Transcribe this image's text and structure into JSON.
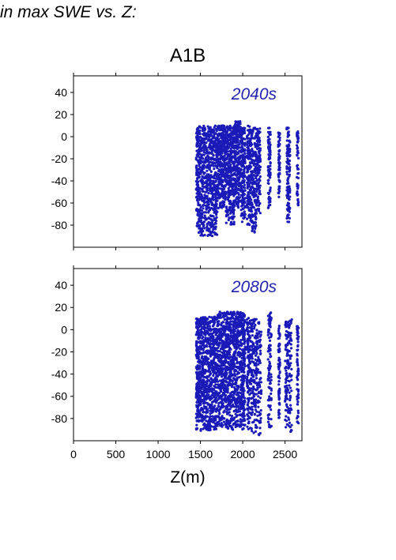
{
  "figure": {
    "title": "in max SWE vs. Z:",
    "scenario": "A1B",
    "x_label": "Z(m)"
  },
  "colors": {
    "points": "#1a1ab8",
    "panel_text": "#2323b0",
    "axis": "#000000"
  },
  "chart_data": [
    {
      "type": "scatter",
      "title": "2040s",
      "xlim": [
        0,
        2700
      ],
      "ylim": [
        -100,
        55
      ],
      "x_ticks": [
        0,
        500,
        1000,
        1500,
        2000,
        2500
      ],
      "y_ticks": [
        40,
        20,
        0,
        -20,
        -40,
        -60,
        -80
      ],
      "x_tick_labels_shown": false,
      "series": [
        {
          "color": "#1a1ab8",
          "clusters": [
            {
              "x_min": 1450,
              "x_max": 1480,
              "y_min": -82,
              "y_max": 8,
              "density": 20
            },
            {
              "x_min": 1480,
              "x_max": 1700,
              "y_min": -90,
              "y_max": 10,
              "density": 110
            },
            {
              "x_min": 1700,
              "x_max": 1800,
              "y_min": -65,
              "y_max": 10,
              "density": 55
            },
            {
              "x_min": 1800,
              "x_max": 1900,
              "y_min": -80,
              "y_max": 10,
              "density": 55
            },
            {
              "x_min": 1900,
              "x_max": 1980,
              "y_min": -65,
              "y_max": 14,
              "density": 40
            },
            {
              "x_min": 1980,
              "x_max": 2030,
              "y_min": -78,
              "y_max": 8,
              "density": 30
            },
            {
              "x_min": 2050,
              "x_max": 2100,
              "y_min": -80,
              "y_max": 10,
              "density": 25
            },
            {
              "x_min": 2100,
              "x_max": 2160,
              "y_min": -88,
              "y_max": 8,
              "density": 25
            },
            {
              "x_min": 2160,
              "x_max": 2210,
              "y_min": -70,
              "y_max": 8,
              "density": 22
            },
            {
              "x_min": 2300,
              "x_max": 2330,
              "y_min": -65,
              "y_max": 8,
              "density": 15
            },
            {
              "x_min": 2420,
              "x_max": 2440,
              "y_min": -55,
              "y_max": 5,
              "density": 10
            },
            {
              "x_min": 2520,
              "x_max": 2560,
              "y_min": -78,
              "y_max": 8,
              "density": 20
            },
            {
              "x_min": 2640,
              "x_max": 2660,
              "y_min": -65,
              "y_max": 5,
              "density": 10
            }
          ]
        }
      ]
    },
    {
      "type": "scatter",
      "title": "2080s",
      "xlim": [
        0,
        2700
      ],
      "ylim": [
        -100,
        55
      ],
      "x_ticks": [
        0,
        500,
        1000,
        1500,
        2000,
        2500
      ],
      "y_ticks": [
        40,
        20,
        0,
        -20,
        -40,
        -60,
        -80
      ],
      "x_tick_labels_shown": true,
      "series": [
        {
          "color": "#1a1ab8",
          "clusters": [
            {
              "x_min": 1450,
              "x_max": 1480,
              "y_min": -90,
              "y_max": 10,
              "density": 25
            },
            {
              "x_min": 1480,
              "x_max": 1700,
              "y_min": -92,
              "y_max": 12,
              "density": 120
            },
            {
              "x_min": 1700,
              "x_max": 1800,
              "y_min": -90,
              "y_max": 16,
              "density": 60
            },
            {
              "x_min": 1800,
              "x_max": 1900,
              "y_min": -90,
              "y_max": 16,
              "density": 60
            },
            {
              "x_min": 1900,
              "x_max": 1980,
              "y_min": -90,
              "y_max": 16,
              "density": 45
            },
            {
              "x_min": 1980,
              "x_max": 2030,
              "y_min": -90,
              "y_max": 16,
              "density": 35
            },
            {
              "x_min": 2050,
              "x_max": 2110,
              "y_min": -92,
              "y_max": 14,
              "density": 30
            },
            {
              "x_min": 2110,
              "x_max": 2220,
              "y_min": -95,
              "y_max": 10,
              "density": 35
            },
            {
              "x_min": 2300,
              "x_max": 2340,
              "y_min": -88,
              "y_max": 16,
              "density": 18
            },
            {
              "x_min": 2420,
              "x_max": 2440,
              "y_min": -80,
              "y_max": 5,
              "density": 12
            },
            {
              "x_min": 2500,
              "x_max": 2580,
              "y_min": -92,
              "y_max": 10,
              "density": 25
            },
            {
              "x_min": 2640,
              "x_max": 2660,
              "y_min": -85,
              "y_max": 5,
              "density": 12
            }
          ]
        }
      ]
    }
  ]
}
